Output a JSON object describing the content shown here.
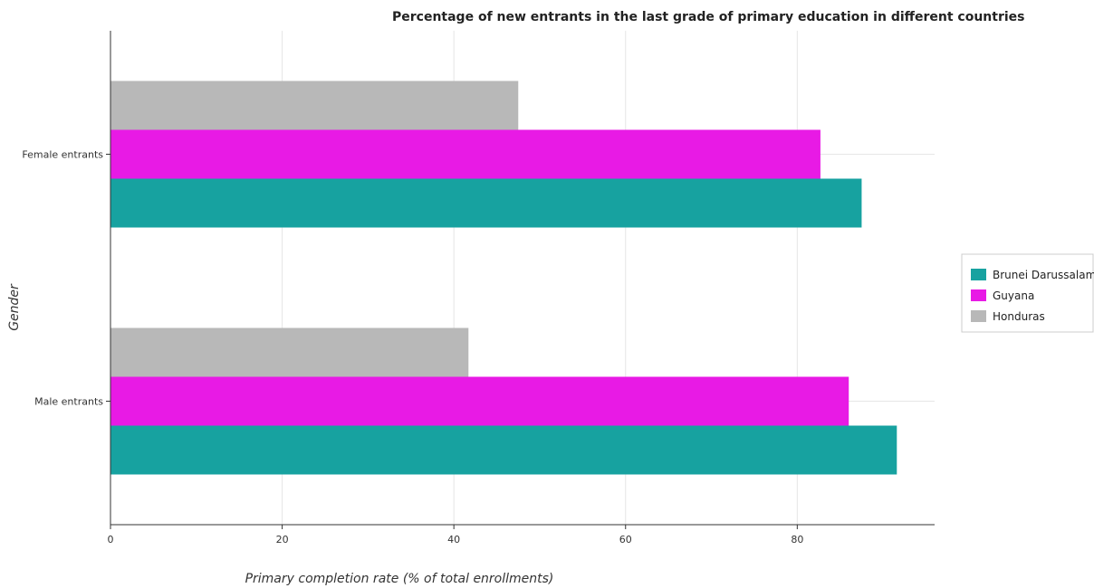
{
  "chart_data": {
    "type": "bar",
    "orientation": "horizontal",
    "title": "Percentage of new entrants in the last grade of primary education in different countries",
    "xlabel": "Primary completion rate (% of total enrollments)",
    "ylabel": "Gender",
    "categories": [
      "Female entrants",
      "Male entrants"
    ],
    "xlim": [
      0,
      96
    ],
    "xticks": [
      0,
      20,
      40,
      60,
      80
    ],
    "grid": true,
    "legend_position": "right",
    "series": [
      {
        "name": "Brunei Darussalam",
        "color": "#17a2a0",
        "values": [
          87.5,
          91.6
        ]
      },
      {
        "name": "Guyana",
        "color": "#e81ae5",
        "values": [
          82.7,
          86.0
        ]
      },
      {
        "name": "Honduras",
        "color": "#b8b8b8",
        "values": [
          47.5,
          41.7
        ]
      }
    ]
  }
}
